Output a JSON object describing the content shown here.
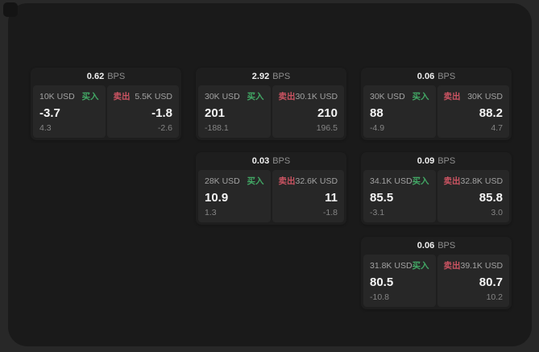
{
  "labels": {
    "bps_suffix": "BPS",
    "buy": "买入",
    "sell": "卖出"
  },
  "colors": {
    "page_background": "#282828",
    "window_background": "#1a1a1a",
    "card_background": "#1e1e1e",
    "panel_background": "#272727",
    "buy_green": "#42a865",
    "sell_red": "#cb5462"
  },
  "cards": [
    {
      "bps": "0.62",
      "buy": {
        "amount": "10K USD",
        "price": "-3.7",
        "delta": "4.3"
      },
      "sell": {
        "amount": "5.5K USD",
        "price": "-1.8",
        "delta": "-2.6"
      }
    },
    {
      "bps": "2.92",
      "buy": {
        "amount": "30K USD",
        "price": "201",
        "delta": "-188.1"
      },
      "sell": {
        "amount": "30.1K USD",
        "price": "210",
        "delta": "196.5"
      }
    },
    {
      "bps": "0.06",
      "buy": {
        "amount": "30K USD",
        "price": "88",
        "delta": "-4.9"
      },
      "sell": {
        "amount": "30K USD",
        "price": "88.2",
        "delta": "4.7"
      }
    },
    {
      "bps": "0.03",
      "buy": {
        "amount": "28K USD",
        "price": "10.9",
        "delta": "1.3"
      },
      "sell": {
        "amount": "32.6K USD",
        "price": "11",
        "delta": "-1.8"
      }
    },
    {
      "bps": "0.09",
      "buy": {
        "amount": "34.1K USD",
        "price": "85.5",
        "delta": "-3.1"
      },
      "sell": {
        "amount": "32.8K USD",
        "price": "85.8",
        "delta": "3.0"
      }
    },
    {
      "bps": "0.06",
      "buy": {
        "amount": "31.8K USD",
        "price": "80.5",
        "delta": "-10.8"
      },
      "sell": {
        "amount": "39.1K USD",
        "price": "80.7",
        "delta": "10.2"
      }
    }
  ]
}
